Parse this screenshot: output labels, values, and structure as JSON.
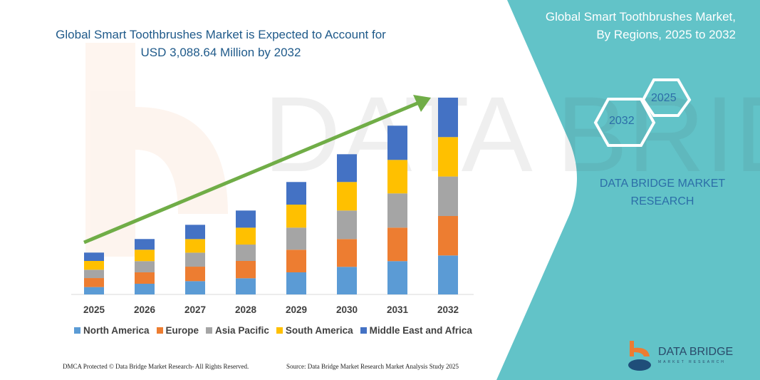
{
  "header": {
    "title_line1": "Global Smart Toothbrushes Market is Expected to Account for",
    "title_line2": "USD 3,088.64 Million by 2032"
  },
  "side_panel": {
    "title_line1": "Global Smart Toothbrushes Market,",
    "title_line2": "By Regions, 2025 to 2032",
    "hex_start": "2025",
    "hex_end": "2032",
    "brand_line1": "DATA BRIDGE MARKET",
    "brand_line2": "RESEARCH",
    "logo_text": "DATA BRIDGE",
    "logo_subtext": "MARKET RESEARCH",
    "color": "#62c3c8"
  },
  "footer": {
    "left": "DMCA Protected © Data Bridge Market Research-  All Rights Reserved.",
    "right": "Source: Data Bridge Market Research  Market Analysis Study 2025"
  },
  "chart_data": {
    "type": "bar",
    "stacked": true,
    "title": "Global Smart Toothbrushes Market is Expected to Account for USD 3,088.64 Million by 2032",
    "categories": [
      "2025",
      "2026",
      "2027",
      "2028",
      "2029",
      "2030",
      "2031",
      "2032"
    ],
    "series": [
      {
        "name": "North America",
        "color": "#5b9bd5",
        "values": [
          116,
          168,
          209,
          254,
          347,
          433,
          523,
          612
        ]
      },
      {
        "name": "Europe",
        "color": "#ed7d31",
        "values": [
          141,
          179,
          227,
          272,
          355,
          436,
          526,
          619
        ]
      },
      {
        "name": "Asia Pacific",
        "color": "#a5a5a5",
        "values": [
          131,
          176,
          220,
          257,
          347,
          448,
          537,
          620
        ]
      },
      {
        "name": "South America",
        "color": "#ffc000",
        "values": [
          138,
          179,
          213,
          265,
          361,
          448,
          526,
          619
        ]
      },
      {
        "name": "Middle East and Africa",
        "color": "#4472c4",
        "values": [
          131,
          168,
          224,
          269,
          355,
          436,
          537,
          619
        ]
      }
    ],
    "ylim": [
      0,
      3100
    ],
    "grid": false,
    "y_axis_shown": false,
    "legend": "bottom",
    "trend_arrow_color": "#70ad47"
  }
}
